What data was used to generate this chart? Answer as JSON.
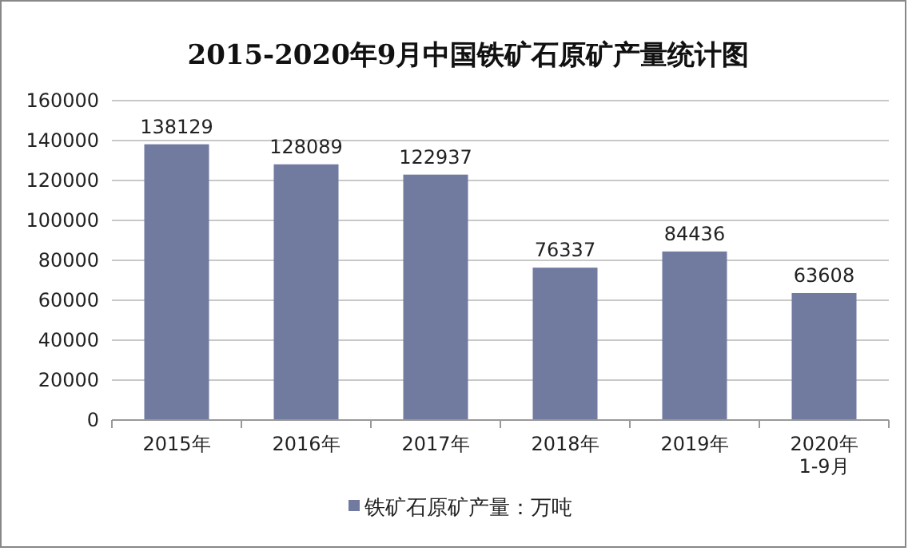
{
  "chart_data": {
    "type": "bar",
    "title": "2015-2020年9月中国铁矿石原矿产量统计图",
    "categories": [
      "2015年",
      "2016年",
      "2017年",
      "2018年",
      "2019年",
      "2020年1-9月"
    ],
    "series": [
      {
        "name": "铁矿石原矿产量：万吨",
        "color": "#717ba0",
        "values": [
          138129,
          128089,
          122937,
          76337,
          84436,
          63608
        ]
      }
    ],
    "ylim": [
      0,
      160000
    ],
    "yticks": [
      0,
      20000,
      40000,
      60000,
      80000,
      100000,
      120000,
      140000,
      160000
    ],
    "grid": "y",
    "data_labels": true,
    "legend": "bottom"
  }
}
